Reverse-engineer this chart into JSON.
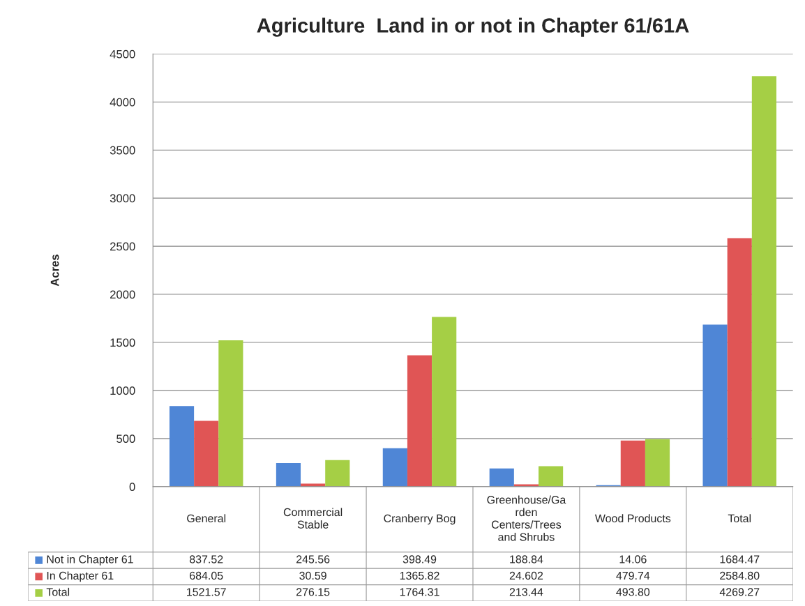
{
  "chart_data": {
    "type": "bar",
    "title": "Agriculture  Land in or not in Chapter 61/61A",
    "ylabel": "Acres",
    "categories": [
      "General",
      "Commercial\nStable",
      "Cranberry Bog",
      "Greenhouse/Ga\nrden\nCenters/Trees\nand Shrubs",
      "Wood Products",
      "Total"
    ],
    "series": [
      {
        "name": "Not in Chapter 61",
        "color": "#4f86d6",
        "values": [
          837.52,
          245.56,
          398.49,
          188.84,
          14.06,
          1684.47
        ],
        "value_labels": [
          "837.52",
          "245.56",
          "398.49",
          "188.84",
          "14.06",
          "1684.47"
        ]
      },
      {
        "name": "In Chapter 61",
        "color": "#e05555",
        "values": [
          684.05,
          30.59,
          1365.82,
          24.602,
          479.74,
          2584.8
        ],
        "value_labels": [
          "684.05",
          "30.59",
          "1365.82",
          "24.602",
          "479.74",
          "2584.80"
        ]
      },
      {
        "name": "Total",
        "color": "#a5cf45",
        "values": [
          1521.57,
          276.15,
          1764.31,
          213.44,
          493.8,
          4269.27
        ],
        "value_labels": [
          "1521.57",
          "276.15",
          "1764.31",
          "213.44",
          "493.80",
          "4269.27"
        ]
      }
    ],
    "ylim": [
      0,
      4500
    ],
    "yticks": [
      0,
      500,
      1000,
      1500,
      2000,
      2500,
      3000,
      3500,
      4000,
      4500
    ],
    "grid": "y",
    "legend": "bottom"
  }
}
